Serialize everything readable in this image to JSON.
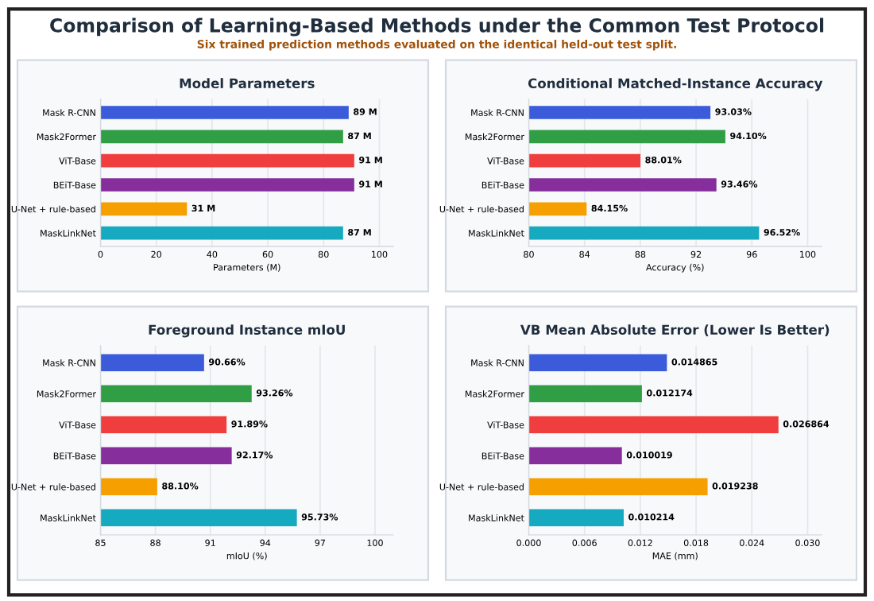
{
  "chart_data": [
    {
      "type": "bar",
      "orientation": "horizontal",
      "title": "Model Parameters",
      "xlabel": "Parameters (M)",
      "annotations": [
        "Comparison of Learning-Based Methods under the Common Test Protocol",
        "Six trained prediction methods evaluated on the identical held-out test split."
      ],
      "categories": [
        "Mask R-CNN",
        "Mask2Former",
        "ViT-Base",
        "BEiT-Base",
        "U-Net + rule-based",
        "MaskLinkNet"
      ],
      "colors": [
        "#3b5bdb",
        "#2f9e44",
        "#f03e3e",
        "#862e9c",
        "#f59f00",
        "#15aabf"
      ],
      "values": [
        89,
        87,
        91,
        91,
        31,
        87
      ],
      "value_labels": [
        "89 M",
        "87 M",
        "91 M",
        "91 M",
        "31 M",
        "87 M"
      ],
      "xlim": [
        0,
        105
      ],
      "xticks": [
        0,
        20,
        40,
        60,
        80,
        100
      ],
      "grid": "x"
    },
    {
      "type": "bar",
      "orientation": "horizontal",
      "title": "Conditional Matched-Instance Accuracy",
      "xlabel": "Accuracy (%)",
      "categories": [
        "Mask R-CNN",
        "Mask2Former",
        "ViT-Base",
        "BEiT-Base",
        "U-Net + rule-based",
        "MaskLinkNet"
      ],
      "colors": [
        "#3b5bdb",
        "#2f9e44",
        "#f03e3e",
        "#862e9c",
        "#f59f00",
        "#15aabf"
      ],
      "values": [
        93.03,
        94.1,
        88.01,
        93.46,
        84.15,
        96.52
      ],
      "value_labels": [
        "93.03%",
        "94.10%",
        "88.01%",
        "93.46%",
        "84.15%",
        "96.52%"
      ],
      "xlim": [
        80,
        101
      ],
      "xticks": [
        80,
        84,
        88,
        92,
        96,
        100
      ],
      "grid": "x"
    },
    {
      "type": "bar",
      "orientation": "horizontal",
      "title": "Foreground Instance mIoU",
      "xlabel": "mIoU (%)",
      "categories": [
        "Mask R-CNN",
        "Mask2Former",
        "ViT-Base",
        "BEiT-Base",
        "U-Net + rule-based",
        "MaskLinkNet"
      ],
      "colors": [
        "#3b5bdb",
        "#2f9e44",
        "#f03e3e",
        "#862e9c",
        "#f59f00",
        "#15aabf"
      ],
      "values": [
        90.66,
        93.26,
        91.89,
        92.17,
        88.1,
        95.73
      ],
      "value_labels": [
        "90.66%",
        "93.26%",
        "91.89%",
        "92.17%",
        "88.10%",
        "95.73%"
      ],
      "xlim": [
        85,
        101
      ],
      "xticks": [
        85,
        88,
        91,
        94,
        97,
        100
      ],
      "grid": "x"
    },
    {
      "type": "bar",
      "orientation": "horizontal",
      "title": "VB Mean Absolute Error (Lower Is Better)",
      "xlabel": "MAE (mm)",
      "categories": [
        "Mask R-CNN",
        "Mask2Former",
        "ViT-Base",
        "BEiT-Base",
        "U-Net + rule-based",
        "MaskLinkNet"
      ],
      "colors": [
        "#3b5bdb",
        "#2f9e44",
        "#f03e3e",
        "#862e9c",
        "#f59f00",
        "#15aabf"
      ],
      "values": [
        0.014865,
        0.012174,
        0.026864,
        0.010019,
        0.019238,
        0.010214
      ],
      "value_labels": [
        "0.014865",
        "0.012174",
        "0.026864",
        "0.010019",
        "0.019238",
        "0.010214"
      ],
      "xlim": [
        0,
        0.0315
      ],
      "xticks": [
        {
          "value": 0,
          "label": "0.000"
        },
        {
          "value": 0.006,
          "label": "0.006"
        },
        {
          "value": 0.012,
          "label": "0.012"
        },
        {
          "value": 0.018,
          "label": "0.018"
        },
        {
          "value": 0.024,
          "label": "0.024"
        },
        {
          "value": 0.03,
          "label": "0.030"
        }
      ],
      "grid": "x"
    }
  ]
}
